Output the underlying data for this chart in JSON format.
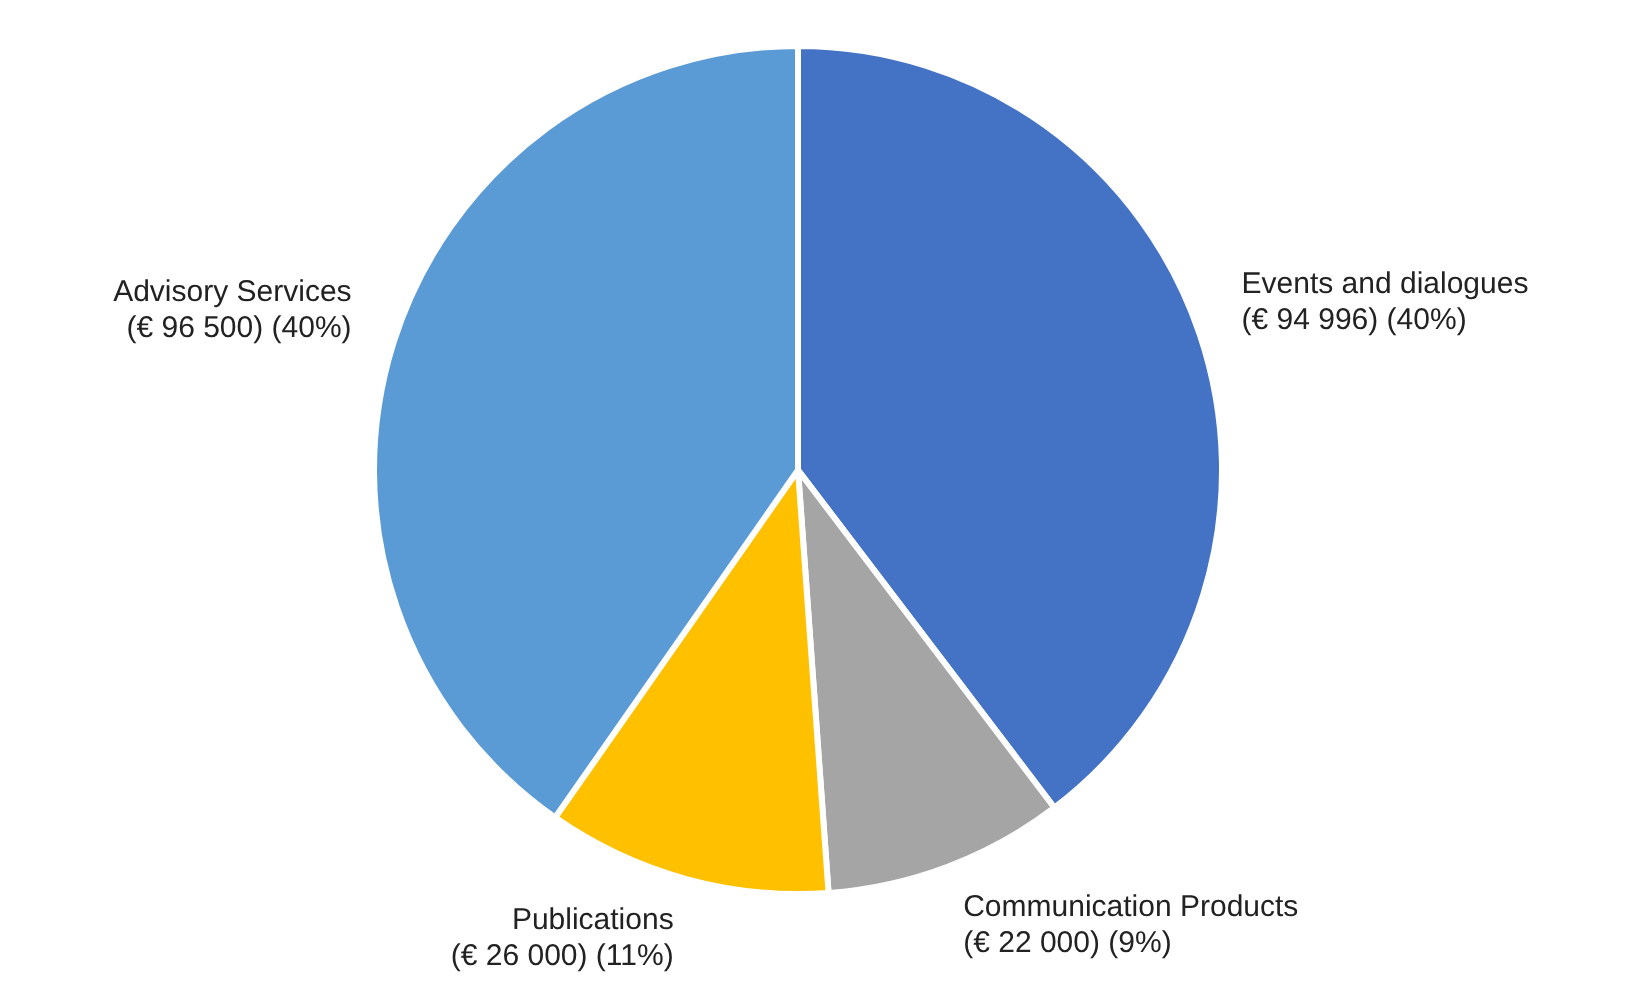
{
  "chart_data": {
    "type": "pie",
    "categories": [
      "Events and dialogues",
      "Communication Products",
      "Publications",
      "Advisory Services"
    ],
    "values": [
      94996,
      22000,
      26000,
      96500
    ],
    "colors": [
      "#4472c4",
      "#a5a5a5",
      "#ffc000",
      "#5b9bd5"
    ],
    "value_labels": [
      "(€ 94 996) (40%)",
      "(€ 22 000) (9%)",
      "(€ 26 000) (11%)",
      "(€ 96 500) (40%)"
    ],
    "legend": false
  }
}
